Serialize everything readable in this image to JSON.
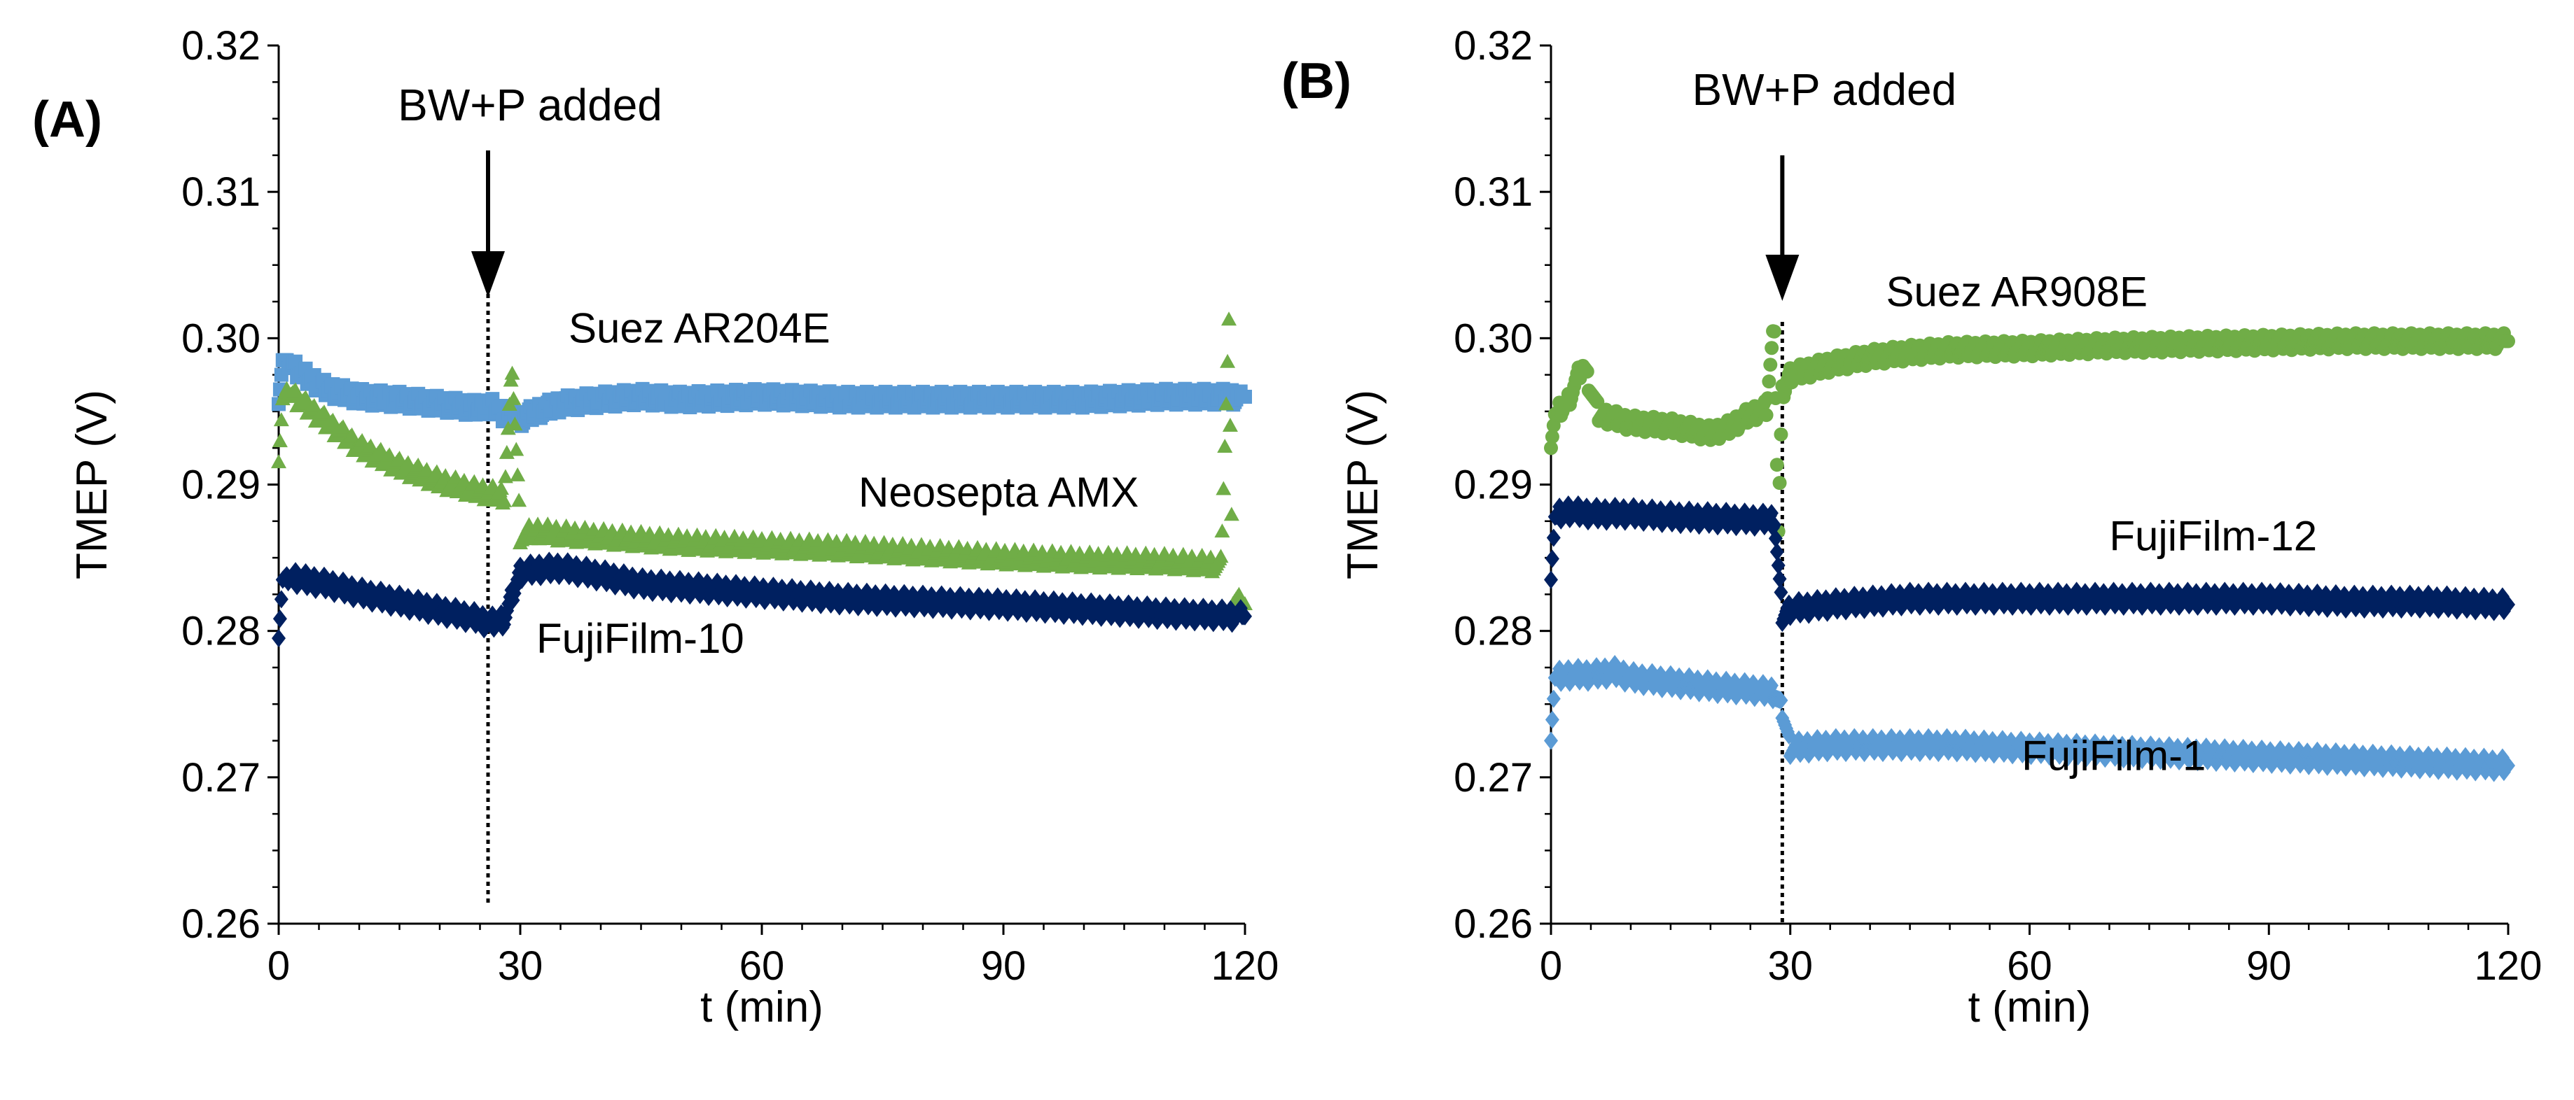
{
  "chart_data": [
    {
      "type": "scatter",
      "panel_label": "(A)",
      "xlabel": "t (min)",
      "ylabel": "TMEP (V)",
      "xlim": [
        0,
        120
      ],
      "ylim": [
        0.26,
        0.32
      ],
      "xticks": [
        0,
        30,
        60,
        90,
        120
      ],
      "xtick_labels": [
        "0",
        "30",
        "60",
        "90",
        "120"
      ],
      "yticks": [
        0.26,
        0.27,
        0.28,
        0.29,
        0.3,
        0.31,
        0.32
      ],
      "ytick_labels": [
        "0.26",
        "0.27",
        "0.28",
        "0.29",
        "0.30",
        "0.31",
        "0.32"
      ],
      "grid": false,
      "event": {
        "label": "BW+P added",
        "x": 26
      },
      "series": [
        {
          "name": "Suez AR204E",
          "color": "#5b9bd5",
          "marker": "square",
          "label_at": [
            36,
            0.2997
          ],
          "points": [
            [
              0,
              0.2955
            ],
            [
              0.5,
              0.2985
            ],
            [
              1,
              0.2985
            ],
            [
              3,
              0.2975
            ],
            [
              6,
              0.2965
            ],
            [
              10,
              0.296
            ],
            [
              15,
              0.2958
            ],
            [
              20,
              0.2955
            ],
            [
              25,
              0.2952
            ],
            [
              26,
              0.2955
            ],
            [
              28,
              0.2948
            ],
            [
              30,
              0.2945
            ],
            [
              32,
              0.295
            ],
            [
              35,
              0.2955
            ],
            [
              40,
              0.2958
            ],
            [
              45,
              0.296
            ],
            [
              50,
              0.2958
            ],
            [
              60,
              0.296
            ],
            [
              70,
              0.2958
            ],
            [
              80,
              0.2958
            ],
            [
              90,
              0.2958
            ],
            [
              100,
              0.2958
            ],
            [
              110,
              0.296
            ],
            [
              118,
              0.296
            ],
            [
              120,
              0.296
            ]
          ]
        },
        {
          "name": "Neosepta AMX",
          "color": "#70ad47",
          "marker": "triangle",
          "label_at": [
            72,
            0.2885
          ],
          "points": [
            [
              0,
              0.2915
            ],
            [
              0.5,
              0.2958
            ],
            [
              1,
              0.2965
            ],
            [
              3,
              0.2955
            ],
            [
              6,
              0.2942
            ],
            [
              10,
              0.2925
            ],
            [
              15,
              0.2912
            ],
            [
              20,
              0.2902
            ],
            [
              25,
              0.2895
            ],
            [
              28,
              0.2892
            ],
            [
              29,
              0.298
            ],
            [
              30,
              0.2865
            ],
            [
              32,
              0.2868
            ],
            [
              35,
              0.2866
            ],
            [
              40,
              0.2864
            ],
            [
              45,
              0.2862
            ],
            [
              50,
              0.286
            ],
            [
              60,
              0.2858
            ],
            [
              70,
              0.2856
            ],
            [
              80,
              0.2853
            ],
            [
              90,
              0.285
            ],
            [
              100,
              0.2848
            ],
            [
              110,
              0.2847
            ],
            [
              117,
              0.2845
            ],
            [
              118,
              0.3008
            ],
            [
              118.5,
              0.282
            ],
            [
              120,
              0.2818
            ]
          ]
        },
        {
          "name": "FujiFilm-10",
          "color": "#002060",
          "marker": "diamond",
          "label_at": [
            32,
            0.2785
          ],
          "points": [
            [
              0,
              0.2795
            ],
            [
              0.5,
              0.2835
            ],
            [
              1,
              0.2838
            ],
            [
              3,
              0.2835
            ],
            [
              6,
              0.2832
            ],
            [
              10,
              0.2826
            ],
            [
              15,
              0.282
            ],
            [
              20,
              0.2814
            ],
            [
              25,
              0.2808
            ],
            [
              26,
              0.2805
            ],
            [
              28,
              0.2808
            ],
            [
              30,
              0.284
            ],
            [
              32,
              0.2842
            ],
            [
              35,
              0.2843
            ],
            [
              40,
              0.2838
            ],
            [
              45,
              0.2832
            ],
            [
              50,
              0.283
            ],
            [
              60,
              0.2826
            ],
            [
              70,
              0.2822
            ],
            [
              80,
              0.282
            ],
            [
              90,
              0.2818
            ],
            [
              100,
              0.2815
            ],
            [
              110,
              0.2812
            ],
            [
              120,
              0.281
            ]
          ]
        }
      ]
    },
    {
      "type": "scatter",
      "panel_label": "(B)",
      "xlabel": "t (min)",
      "ylabel": "TMEP (V)",
      "xlim": [
        0,
        120
      ],
      "ylim": [
        0.26,
        0.32
      ],
      "xticks": [
        0,
        30,
        60,
        90,
        120
      ],
      "xtick_labels": [
        "0",
        "30",
        "60",
        "90",
        "120"
      ],
      "yticks": [
        0.26,
        0.27,
        0.28,
        0.29,
        0.3,
        0.31,
        0.32
      ],
      "ytick_labels": [
        "0.26",
        "0.27",
        "0.28",
        "0.29",
        "0.30",
        "0.31",
        "0.32"
      ],
      "grid": false,
      "event": {
        "label": "BW+P added",
        "x": 29
      },
      "series": [
        {
          "name": "Suez AR908E",
          "color": "#70ad47",
          "marker": "circle",
          "label_at": [
            42,
            0.3022
          ],
          "points": [
            [
              0,
              0.2925
            ],
            [
              0.5,
              0.2948
            ],
            [
              2,
              0.2955
            ],
            [
              4,
              0.2982
            ],
            [
              6,
              0.2948
            ],
            [
              10,
              0.2942
            ],
            [
              15,
              0.294
            ],
            [
              20,
              0.2935
            ],
            [
              22,
              0.2938
            ],
            [
              25,
              0.2948
            ],
            [
              27,
              0.2952
            ],
            [
              28,
              0.301
            ],
            [
              28.5,
              0.2868
            ],
            [
              29,
              0.2962
            ],
            [
              30,
              0.2975
            ],
            [
              35,
              0.2982
            ],
            [
              40,
              0.2987
            ],
            [
              45,
              0.299
            ],
            [
              50,
              0.2992
            ],
            [
              60,
              0.2993
            ],
            [
              70,
              0.2995
            ],
            [
              80,
              0.2996
            ],
            [
              90,
              0.2997
            ],
            [
              100,
              0.2998
            ],
            [
              110,
              0.2998
            ],
            [
              120,
              0.2998
            ]
          ]
        },
        {
          "name": "FujiFilm-12",
          "color": "#002060",
          "marker": "diamond",
          "label_at": [
            70,
            0.2855
          ],
          "points": [
            [
              0,
              0.2835
            ],
            [
              0.5,
              0.2878
            ],
            [
              2,
              0.2882
            ],
            [
              5,
              0.288
            ],
            [
              10,
              0.288
            ],
            [
              15,
              0.2878
            ],
            [
              20,
              0.2877
            ],
            [
              25,
              0.2876
            ],
            [
              28,
              0.2876
            ],
            [
              29,
              0.281
            ],
            [
              30,
              0.2815
            ],
            [
              35,
              0.2818
            ],
            [
              40,
              0.282
            ],
            [
              45,
              0.2822
            ],
            [
              50,
              0.2822
            ],
            [
              60,
              0.2822
            ],
            [
              70,
              0.2822
            ],
            [
              80,
              0.2822
            ],
            [
              90,
              0.2822
            ],
            [
              100,
              0.282
            ],
            [
              110,
              0.282
            ],
            [
              120,
              0.2818
            ]
          ]
        },
        {
          "name": "FujiFilm-1",
          "color": "#5b9bd5",
          "marker": "diamond",
          "label_at": [
            59,
            0.2705
          ],
          "points": [
            [
              0,
              0.2725
            ],
            [
              0.5,
              0.2768
            ],
            [
              2,
              0.277
            ],
            [
              5,
              0.277
            ],
            [
              8,
              0.2772
            ],
            [
              10,
              0.2768
            ],
            [
              15,
              0.2765
            ],
            [
              20,
              0.2762
            ],
            [
              25,
              0.276
            ],
            [
              28,
              0.2758
            ],
            [
              29,
              0.2745
            ],
            [
              30,
              0.272
            ],
            [
              35,
              0.2722
            ],
            [
              40,
              0.2722
            ],
            [
              45,
              0.2722
            ],
            [
              50,
              0.2722
            ],
            [
              60,
              0.272
            ],
            [
              70,
              0.2718
            ],
            [
              80,
              0.2716
            ],
            [
              90,
              0.2714
            ],
            [
              100,
              0.2712
            ],
            [
              110,
              0.271
            ],
            [
              120,
              0.2708
            ]
          ]
        }
      ]
    }
  ]
}
